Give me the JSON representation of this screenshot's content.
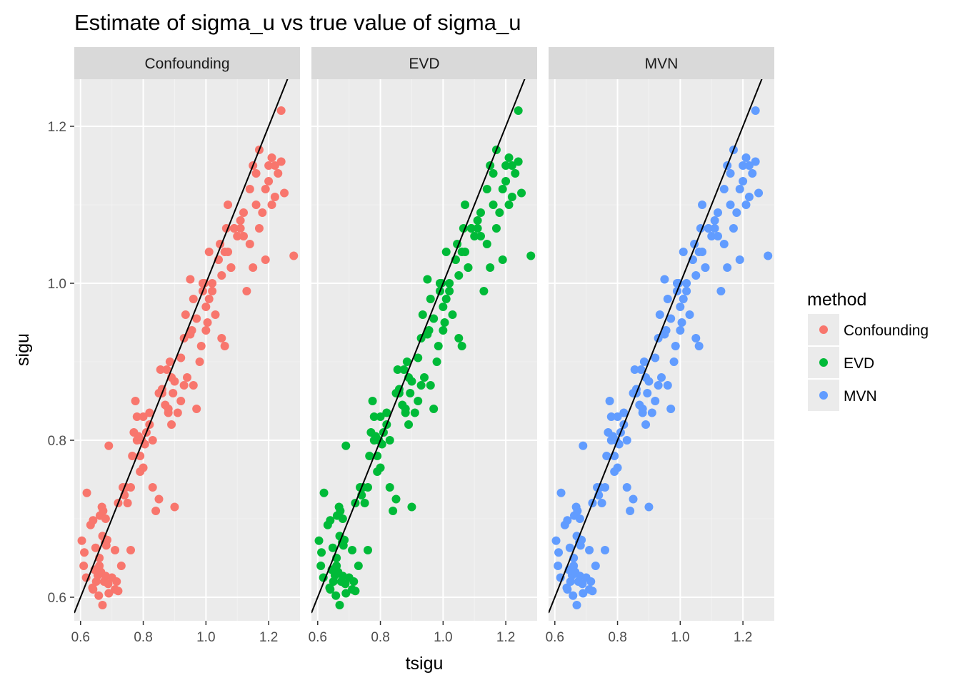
{
  "title": "Estimate of sigma_u vs true value of sigma_u",
  "colors": {
    "panel_bg": "#EBEBEB",
    "strip_bg": "#D9D9D9",
    "grid_major": "#FFFFFF",
    "grid_minor": "#F2F2F2",
    "ref_line": "#000000",
    "tick": "#333333"
  },
  "legend": {
    "title": "method",
    "items": [
      {
        "label": "Confounding",
        "color": "#F8766D"
      },
      {
        "label": "EVD",
        "color": "#00BA38"
      },
      {
        "label": "MVN",
        "color": "#619CFF"
      }
    ]
  },
  "chart_data": {
    "type": "scatter",
    "facets": [
      "Confounding",
      "EVD",
      "MVN"
    ],
    "xlabel": "tsigu",
    "ylabel": "sigu",
    "xlim": [
      0.58,
      1.3
    ],
    "ylim": [
      0.57,
      1.26
    ],
    "xticks": [
      0.6,
      0.8,
      1.0,
      1.2
    ],
    "xtick_labels": [
      "0.6",
      "0.8",
      "1.0",
      "1.2"
    ],
    "yticks": [
      0.6,
      0.8,
      1.0,
      1.2
    ],
    "ytick_labels": [
      "0.6",
      "0.8",
      "1.0",
      "1.2"
    ],
    "grid": true,
    "legend_position": "right",
    "reference_line": {
      "slope": 1,
      "intercept": 0
    },
    "x": [
      0.604,
      0.61,
      0.612,
      0.618,
      0.62,
      0.632,
      0.638,
      0.64,
      0.645,
      0.648,
      0.65,
      0.655,
      0.658,
      0.66,
      0.662,
      0.665,
      0.668,
      0.67,
      0.672,
      0.675,
      0.678,
      0.68,
      0.682,
      0.685,
      0.688,
      0.69,
      0.7,
      0.71,
      0.715,
      0.72,
      0.73,
      0.735,
      0.74,
      0.745,
      0.76,
      0.765,
      0.77,
      0.775,
      0.78,
      0.785,
      0.79,
      0.795,
      0.8,
      0.805,
      0.81,
      0.82,
      0.83,
      0.84,
      0.85,
      0.855,
      0.86,
      0.87,
      0.875,
      0.88,
      0.885,
      0.89,
      0.895,
      0.9,
      0.91,
      0.92,
      0.93,
      0.935,
      0.94,
      0.95,
      0.955,
      0.96,
      0.97,
      0.98,
      0.985,
      0.99,
      0.995,
      1.0,
      1.005,
      1.01,
      1.02,
      1.03,
      1.04,
      1.045,
      1.05,
      1.06,
      1.065,
      1.07,
      1.08,
      1.09,
      1.1,
      1.11,
      1.12,
      1.13,
      1.14,
      1.15,
      1.16,
      1.17,
      1.18,
      1.19,
      1.2,
      1.21,
      1.22,
      1.23,
      1.24,
      1.25,
      1.28,
      0.66,
      0.67,
      0.69,
      0.72,
      0.75,
      0.78,
      0.8,
      0.83,
      0.86,
      0.88,
      0.9,
      0.92,
      0.95,
      0.97,
      1.0,
      1.02,
      1.05,
      1.07,
      1.09,
      1.12,
      1.15,
      1.17,
      1.2,
      1.22,
      0.64,
      0.68,
      0.71,
      0.76,
      0.79,
      0.82,
      0.85,
      0.89,
      0.93,
      0.96,
      0.99,
      1.01,
      1.04,
      1.06,
      1.08,
      1.11,
      1.14,
      1.16,
      1.19,
      1.21,
      1.24
    ],
    "y": [
      0.672,
      0.64,
      0.657,
      0.625,
      0.733,
      0.692,
      0.612,
      0.698,
      0.635,
      0.663,
      0.62,
      0.628,
      0.602,
      0.64,
      0.704,
      0.632,
      0.715,
      0.678,
      0.71,
      0.62,
      0.67,
      0.627,
      0.666,
      0.673,
      0.617,
      0.793,
      0.625,
      0.61,
      0.62,
      0.608,
      0.64,
      0.74,
      0.73,
      0.74,
      0.66,
      0.78,
      0.81,
      0.85,
      0.8,
      0.805,
      0.76,
      0.8,
      0.83,
      0.795,
      0.81,
      0.835,
      0.74,
      0.71,
      0.725,
      0.89,
      0.86,
      0.845,
      0.89,
      0.835,
      0.9,
      0.82,
      0.86,
      0.715,
      0.835,
      0.85,
      0.87,
      0.96,
      0.88,
      1.005,
      0.94,
      0.98,
      0.84,
      0.9,
      0.92,
      0.99,
      1.0,
      0.94,
      0.95,
      1.04,
      1.0,
      0.96,
      1.03,
      1.05,
      0.93,
      0.92,
      1.07,
      1.1,
      1.02,
      1.07,
      1.06,
      1.08,
      1.06,
      0.99,
      1.12,
      1.15,
      1.14,
      1.17,
      1.09,
      1.12,
      1.15,
      1.16,
      1.11,
      1.14,
      1.22,
      1.115,
      1.035,
      0.65,
      0.59,
      0.605,
      0.72,
      0.72,
      0.83,
      0.765,
      0.8,
      0.865,
      0.84,
      0.875,
      0.905,
      0.935,
      0.955,
      0.97,
      0.99,
      1.01,
      1.04,
      1.07,
      1.09,
      1.02,
      1.07,
      1.13,
      1.15,
      0.61,
      0.7,
      0.66,
      0.74,
      0.78,
      0.82,
      0.86,
      0.88,
      0.93,
      0.87,
      1.0,
      0.98,
      1.03,
      1.04,
      1.02,
      1.07,
      1.05,
      1.1,
      1.03,
      1.1,
      1.155
    ]
  }
}
